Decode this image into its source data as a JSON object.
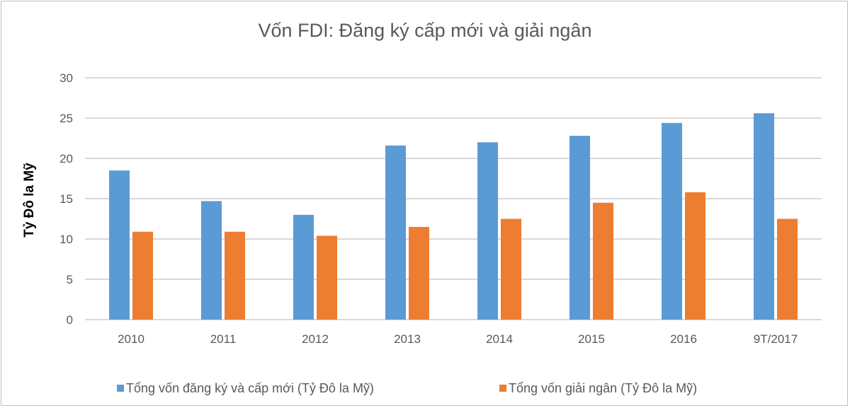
{
  "chart_data": {
    "type": "bar",
    "title": "Vốn FDI: Đăng ký cấp mới và giải ngân",
    "xlabel": "",
    "ylabel": "Tỷ Đô la Mỹ",
    "ylim": [
      0,
      30
    ],
    "yticks": [
      0,
      5,
      10,
      15,
      20,
      25,
      30
    ],
    "grid": true,
    "legend_position": "bottom",
    "categories": [
      "2010",
      "2011",
      "2012",
      "2013",
      "2014",
      "2015",
      "2016",
      "9T/2017"
    ],
    "series": [
      {
        "name": "Tổng vốn đăng ký và cấp mới (Tỷ Đô la Mỹ)",
        "color": "#5b9bd5",
        "values": [
          18.5,
          14.7,
          13.0,
          21.6,
          22.0,
          22.8,
          24.4,
          25.6
        ]
      },
      {
        "name": "Tổng vốn giải ngân (Tỷ Đô la Mỹ)",
        "color": "#ed7d31",
        "values": [
          10.9,
          10.9,
          10.4,
          11.5,
          12.5,
          14.5,
          15.8,
          12.5
        ]
      }
    ]
  }
}
